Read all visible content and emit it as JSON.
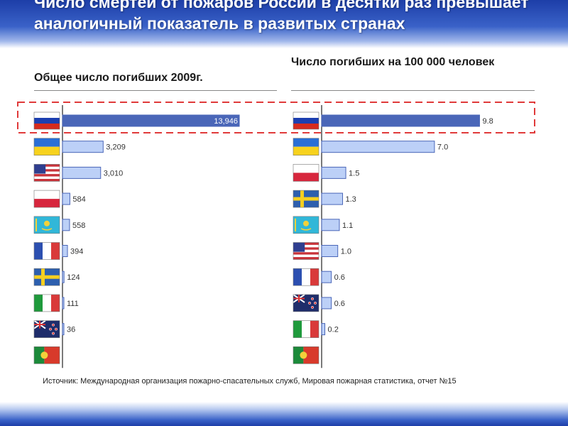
{
  "slide": {
    "title": "Число смертей от пожаров России в десятки раз превышает аналогичный показатель в развитых странах",
    "source": "Источник: Международная организация пожарно-спасательных служб, Мировая пожарная статистика, отчет №15"
  },
  "colors": {
    "highlight_bar": "#4a66b8",
    "bar": "#bcd0f7",
    "bar_border": "#4a66b8",
    "highlight_box": "#e03a3a",
    "header": "#2b4fb8"
  },
  "chart_data": [
    {
      "type": "bar",
      "orientation": "horizontal",
      "title": "Общее число погибших 2009г.",
      "categories": [
        "russia-flag",
        "ukraine-flag",
        "usa-flag",
        "poland-flag",
        "kazakhstan-flag",
        "france-flag",
        "sweden-flag",
        "italy-flag",
        "new-zealand-flag",
        "portugal-flag"
      ],
      "values": [
        13946,
        3209,
        3010,
        584,
        558,
        394,
        124,
        111,
        36,
        null
      ],
      "labels": [
        "13,946",
        "3,209",
        "3,010",
        "584",
        "558",
        "394",
        "124",
        "111",
        "36",
        ""
      ],
      "highlighted_index": 0,
      "xlim": [
        0,
        14000
      ]
    },
    {
      "type": "bar",
      "orientation": "horizontal",
      "title": "Число погибших на 100 000 человек",
      "categories": [
        "russia-flag",
        "ukraine-flag",
        "poland-flag",
        "sweden-flag",
        "kazakhstan-flag",
        "usa-flag",
        "france-flag",
        "new-zealand-flag",
        "italy-flag",
        "portugal-flag"
      ],
      "values": [
        9.8,
        7.0,
        1.5,
        1.3,
        1.1,
        1.0,
        0.6,
        0.6,
        0.2,
        null
      ],
      "labels": [
        "9.8",
        "7.0",
        "1.5",
        "1.3",
        "1.1",
        "1.0",
        "0.6",
        "0.6",
        "0.2",
        ""
      ],
      "highlighted_index": 0,
      "xlim": [
        0,
        10
      ]
    }
  ]
}
